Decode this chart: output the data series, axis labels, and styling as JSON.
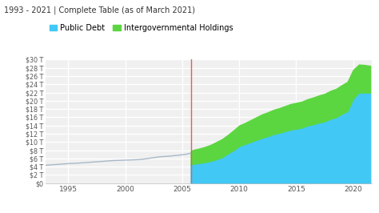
{
  "title": "1993 - 2021 | Complete Table (as of March 2021)",
  "legend": [
    "Public Debt",
    "Intergovernmental Holdings"
  ],
  "public_debt_color": "#42c8f5",
  "intergovernmental_color": "#5cd640",
  "line_color": "#a8b8c8",
  "vline_x": 2005.75,
  "vline_color": "#e06060",
  "background_color": "#f0f0f0",
  "grid_color": "#ffffff",
  "ylabel_color": "#555555",
  "ylim": [
    0,
    30
  ],
  "yticks": [
    0,
    2,
    4,
    6,
    8,
    10,
    12,
    14,
    16,
    18,
    20,
    22,
    24,
    26,
    28,
    30
  ],
  "xlim": [
    1993.0,
    2021.6
  ],
  "xticks": [
    1995,
    2000,
    2005,
    2010,
    2015,
    2020
  ],
  "years_line": [
    1993.0,
    1993.5,
    1994.0,
    1994.5,
    1995.0,
    1995.5,
    1996.0,
    1996.5,
    1997.0,
    1997.5,
    1998.0,
    1998.5,
    1999.0,
    1999.5,
    2000.0,
    2000.5,
    2001.0,
    2001.5,
    2002.0,
    2002.5,
    2003.0,
    2003.5,
    2004.0,
    2004.5,
    2005.0,
    2005.5,
    2005.75
  ],
  "public_debt_line": [
    4.35,
    4.45,
    4.55,
    4.65,
    4.75,
    4.82,
    4.9,
    5.0,
    5.1,
    5.2,
    5.3,
    5.4,
    5.5,
    5.55,
    5.6,
    5.65,
    5.7,
    5.8,
    6.0,
    6.2,
    6.4,
    6.5,
    6.6,
    6.75,
    6.9,
    7.1,
    7.3
  ],
  "years_area": [
    2005.75,
    2006.0,
    2006.5,
    2007.0,
    2007.5,
    2008.0,
    2008.5,
    2009.0,
    2009.5,
    2010.0,
    2010.5,
    2011.0,
    2011.5,
    2012.0,
    2012.5,
    2013.0,
    2013.5,
    2014.0,
    2014.5,
    2015.0,
    2015.5,
    2016.0,
    2016.5,
    2017.0,
    2017.5,
    2018.0,
    2018.5,
    2019.0,
    2019.5,
    2020.0,
    2020.5,
    2021.0,
    2021.5
  ],
  "public_debt_area": [
    4.5,
    4.7,
    4.9,
    5.1,
    5.4,
    5.8,
    6.3,
    7.2,
    8.0,
    9.0,
    9.5,
    10.0,
    10.5,
    11.0,
    11.4,
    11.9,
    12.2,
    12.6,
    13.0,
    13.2,
    13.5,
    14.0,
    14.3,
    14.7,
    15.0,
    15.6,
    16.0,
    16.8,
    17.5,
    20.5,
    22.0,
    22.0,
    22.0
  ],
  "intergovernmental_area": [
    3.3,
    3.4,
    3.5,
    3.7,
    3.9,
    4.2,
    4.4,
    4.5,
    4.8,
    5.0,
    5.1,
    5.3,
    5.5,
    5.7,
    5.8,
    5.9,
    6.0,
    6.1,
    6.2,
    6.3,
    6.3,
    6.4,
    6.5,
    6.6,
    6.7,
    6.8,
    6.9,
    7.0,
    7.1,
    7.0,
    6.8,
    6.7,
    6.5
  ],
  "legend_colors": [
    "#42c8f5",
    "#5cd640"
  ]
}
